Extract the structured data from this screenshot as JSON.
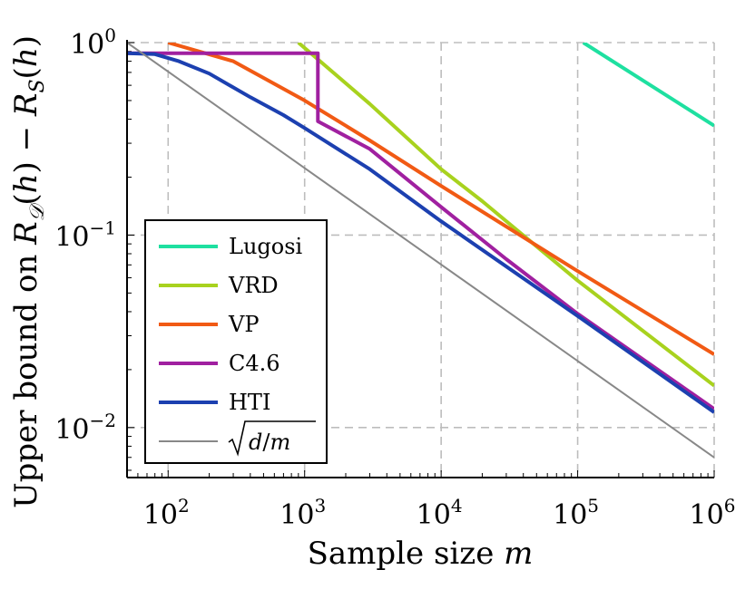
{
  "chart_data": {
    "type": "line",
    "scale": {
      "x": "log",
      "y": "log"
    },
    "xlim": [
      50,
      1000000
    ],
    "ylim": [
      0.0055,
      1.0
    ],
    "grid": true,
    "xlabel": "Sample size m",
    "ylabel": "Upper bound on R_D(h) − R_S(h)",
    "x_ticks": [
      {
        "value": 100,
        "base": "10",
        "exp": "2"
      },
      {
        "value": 1000,
        "base": "10",
        "exp": "3"
      },
      {
        "value": 10000,
        "base": "10",
        "exp": "4"
      },
      {
        "value": 100000,
        "base": "10",
        "exp": "5"
      },
      {
        "value": 1000000,
        "base": "10",
        "exp": "6"
      }
    ],
    "y_ticks": [
      {
        "value": 1,
        "base": "10",
        "exp": "0"
      },
      {
        "value": 0.1,
        "base": "10",
        "exp": "−1"
      },
      {
        "value": 0.01,
        "base": "10",
        "exp": "−2"
      }
    ],
    "legend_position": "bottom-left",
    "series": [
      {
        "name": "Lugosi",
        "color": "#1ee0a0",
        "width": 4,
        "points": [
          [
            110000,
            1.0
          ],
          [
            1000000,
            0.37
          ]
        ]
      },
      {
        "name": "VRD",
        "color": "#a8d21e",
        "width": 4,
        "points": [
          [
            900,
            1.0
          ],
          [
            3000,
            0.48
          ],
          [
            10000,
            0.22
          ],
          [
            20000,
            0.15
          ],
          [
            100000,
            0.058
          ],
          [
            1000000,
            0.0165
          ]
        ]
      },
      {
        "name": "VP",
        "color": "#f15a14",
        "width": 4,
        "points": [
          [
            100,
            1.0
          ],
          [
            300,
            0.8
          ],
          [
            1000,
            0.5
          ],
          [
            3000,
            0.31
          ],
          [
            10000,
            0.18
          ],
          [
            100000,
            0.065
          ],
          [
            1000000,
            0.024
          ]
        ]
      },
      {
        "name": "C4.6",
        "color": "#a020a0",
        "width": 4,
        "points": [
          [
            50,
            0.88
          ],
          [
            1250,
            0.88
          ],
          [
            1250,
            0.39
          ],
          [
            3000,
            0.28
          ],
          [
            10000,
            0.14
          ],
          [
            30000,
            0.075
          ],
          [
            100000,
            0.039
          ],
          [
            1000000,
            0.0125
          ]
        ]
      },
      {
        "name": "HTI",
        "color": "#1c40b0",
        "width": 4,
        "points": [
          [
            50,
            0.88
          ],
          [
            80,
            0.87
          ],
          [
            120,
            0.8
          ],
          [
            200,
            0.69
          ],
          [
            400,
            0.52
          ],
          [
            700,
            0.42
          ],
          [
            1000,
            0.36
          ],
          [
            3000,
            0.22
          ],
          [
            10000,
            0.118
          ],
          [
            100000,
            0.038
          ],
          [
            1000000,
            0.012
          ]
        ]
      },
      {
        "name": "sqrt(d/m)",
        "color": "#888888",
        "width": 2,
        "points": [
          [
            50,
            1.0
          ],
          [
            1000000,
            0.007
          ]
        ]
      }
    ]
  }
}
